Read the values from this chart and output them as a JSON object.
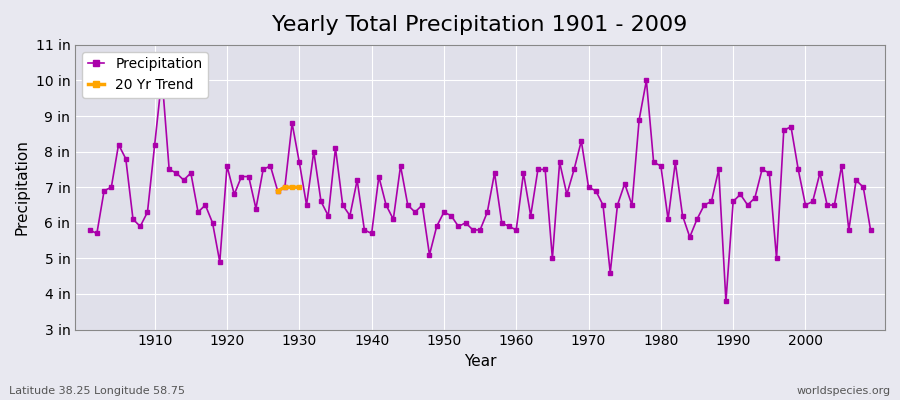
{
  "title": "Yearly Total Precipitation 1901 - 2009",
  "xlabel": "Year",
  "ylabel": "Precipitation",
  "lat_label": "Latitude 38.25 Longitude 58.75",
  "credit": "worldspecies.org",
  "years": [
    1901,
    1902,
    1903,
    1904,
    1905,
    1906,
    1907,
    1908,
    1909,
    1910,
    1911,
    1912,
    1913,
    1914,
    1915,
    1916,
    1917,
    1918,
    1919,
    1920,
    1921,
    1922,
    1923,
    1924,
    1925,
    1926,
    1927,
    1928,
    1929,
    1930,
    1931,
    1932,
    1933,
    1934,
    1935,
    1936,
    1937,
    1938,
    1939,
    1940,
    1941,
    1942,
    1943,
    1944,
    1945,
    1946,
    1947,
    1948,
    1949,
    1950,
    1951,
    1952,
    1953,
    1954,
    1955,
    1956,
    1957,
    1958,
    1959,
    1960,
    1961,
    1962,
    1963,
    1964,
    1965,
    1966,
    1967,
    1968,
    1969,
    1970,
    1971,
    1972,
    1973,
    1974,
    1975,
    1976,
    1977,
    1978,
    1979,
    1980,
    1981,
    1982,
    1983,
    1984,
    1985,
    1986,
    1987,
    1988,
    1989,
    1990,
    1991,
    1992,
    1993,
    1994,
    1995,
    1996,
    1997,
    1998,
    1999,
    2000,
    2001,
    2002,
    2003,
    2004,
    2005,
    2006,
    2007,
    2008,
    2009
  ],
  "precip_in": [
    5.8,
    5.7,
    6.9,
    7.0,
    8.2,
    7.8,
    6.1,
    5.9,
    6.3,
    8.2,
    10.1,
    7.5,
    7.4,
    7.2,
    7.4,
    6.3,
    6.5,
    6.0,
    4.9,
    7.6,
    6.8,
    7.3,
    7.3,
    6.4,
    7.5,
    7.6,
    6.9,
    7.0,
    8.8,
    7.7,
    6.5,
    8.0,
    6.6,
    6.2,
    8.1,
    6.5,
    6.2,
    7.2,
    5.8,
    5.7,
    7.3,
    6.5,
    6.1,
    7.6,
    6.5,
    6.3,
    6.5,
    5.1,
    5.9,
    6.3,
    6.2,
    5.9,
    6.0,
    5.8,
    5.8,
    6.3,
    7.4,
    6.0,
    5.9,
    5.8,
    7.4,
    6.2,
    7.5,
    7.5,
    5.0,
    7.7,
    6.8,
    7.5,
    8.3,
    7.0,
    6.9,
    6.5,
    4.6,
    6.5,
    7.1,
    6.5,
    8.9,
    10.0,
    7.7,
    7.6,
    6.1,
    7.7,
    6.2,
    5.6,
    6.1,
    6.5,
    6.6,
    7.5,
    3.8,
    6.6,
    6.8,
    6.5,
    6.7,
    7.5,
    7.4,
    5.0,
    8.6,
    8.7,
    7.5,
    6.5,
    6.6,
    7.4,
    6.5,
    6.5,
    7.6,
    5.8,
    7.2,
    7.0,
    5.8
  ],
  "trend_years": [
    1927,
    1928,
    1929,
    1930
  ],
  "trend_values": [
    6.9,
    7.0,
    7.0,
    7.0
  ],
  "precip_color": "#aa00aa",
  "trend_color": "#ffa500",
  "bg_color": "#e8e8f0",
  "plot_bg_color": "#e0e0ea",
  "grid_color": "#ffffff",
  "ylim": [
    3,
    11
  ],
  "ytick_labels": [
    "3 in",
    "4 in",
    "5 in",
    "6 in",
    "7 in",
    "8 in",
    "9 in",
    "10 in",
    "11 in"
  ],
  "ytick_values": [
    3,
    4,
    5,
    6,
    7,
    8,
    9,
    10,
    11
  ],
  "xtick_values": [
    1910,
    1920,
    1930,
    1940,
    1950,
    1960,
    1970,
    1980,
    1990,
    2000
  ],
  "xtick_labels": [
    "1910",
    "1920",
    "1930",
    "1940",
    "1950",
    "1960",
    "1970",
    "1980",
    "1990",
    "2000"
  ],
  "title_fontsize": 16,
  "label_fontsize": 11,
  "tick_fontsize": 10,
  "legend_fontsize": 10,
  "marker_size": 3,
  "line_width": 1.2
}
